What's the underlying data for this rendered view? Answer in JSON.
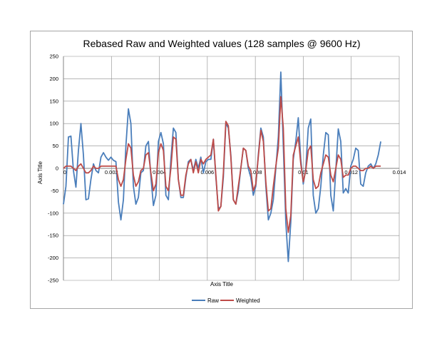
{
  "chart_data": {
    "type": "line",
    "title": "Rebased Raw and Weighted values (128 samples @ 9600 Hz)",
    "xlabel": "Axis Title",
    "ylabel": "Axis Title",
    "xlim": [
      0,
      0.014
    ],
    "ylim": [
      -250,
      250
    ],
    "x_ticks": [
      "0",
      "0.002",
      "0.004",
      "0.006",
      "0.008",
      "0.01",
      "0.012",
      "0.014"
    ],
    "y_ticks": [
      "250",
      "200",
      "150",
      "100",
      "50",
      "0",
      "-50",
      "-100",
      "-150",
      "-200",
      "-250"
    ],
    "grid": true,
    "legend_position": "bottom",
    "sample_interval": 0.000104167,
    "series": [
      {
        "name": "Raw",
        "color": "#4a7ebb",
        "values": [
          -80,
          -40,
          70,
          72,
          -5,
          -42,
          40,
          100,
          30,
          -70,
          -68,
          -25,
          10,
          -5,
          -10,
          25,
          35,
          25,
          18,
          25,
          18,
          15,
          -75,
          -115,
          -70,
          50,
          133,
          100,
          -40,
          -80,
          -65,
          -10,
          -5,
          50,
          60,
          -20,
          -83,
          -60,
          60,
          80,
          55,
          -60,
          -70,
          20,
          90,
          80,
          -25,
          -65,
          -65,
          -20,
          15,
          20,
          -5,
          20,
          0,
          25,
          -10,
          15,
          20,
          20,
          65,
          -20,
          -90,
          -85,
          -20,
          100,
          90,
          30,
          -70,
          -80,
          -50,
          0,
          45,
          40,
          0,
          -20,
          -60,
          -40,
          30,
          90,
          70,
          -40,
          -115,
          -100,
          -70,
          0,
          70,
          215,
          50,
          -120,
          -208,
          -120,
          20,
          60,
          113,
          20,
          -35,
          0,
          90,
          110,
          -60,
          -100,
          -90,
          -40,
          30,
          80,
          75,
          -60,
          -95,
          -5,
          88,
          60,
          -55,
          -45,
          -55,
          5,
          20,
          45,
          40,
          -35,
          -40,
          -10,
          5,
          10,
          0,
          10,
          30,
          60
        ]
      },
      {
        "name": "Weighted",
        "color": "#be4b48",
        "values": [
          0,
          5,
          5,
          5,
          0,
          -5,
          5,
          10,
          0,
          -10,
          -10,
          -5,
          5,
          0,
          0,
          5,
          5,
          5,
          5,
          5,
          5,
          5,
          -25,
          -40,
          -25,
          20,
          55,
          45,
          -15,
          -40,
          -30,
          -5,
          0,
          30,
          35,
          -10,
          -50,
          -35,
          35,
          55,
          40,
          -40,
          -50,
          0,
          70,
          65,
          -25,
          -60,
          -60,
          -15,
          10,
          20,
          -10,
          15,
          -10,
          20,
          10,
          20,
          25,
          30,
          65,
          -15,
          -95,
          -85,
          -10,
          105,
          95,
          25,
          -70,
          -80,
          -40,
          0,
          45,
          40,
          5,
          -5,
          -50,
          -35,
          25,
          85,
          60,
          -30,
          -95,
          -90,
          -40,
          5,
          45,
          160,
          90,
          -90,
          -143,
          -105,
          30,
          50,
          70,
          10,
          -30,
          -5,
          40,
          50,
          -25,
          -45,
          -40,
          -10,
          10,
          30,
          25,
          -15,
          -30,
          0,
          30,
          20,
          -20,
          -15,
          -15,
          0,
          5,
          5,
          0,
          -5,
          -5,
          0,
          0,
          5,
          0,
          5,
          5,
          5
        ]
      }
    ]
  }
}
